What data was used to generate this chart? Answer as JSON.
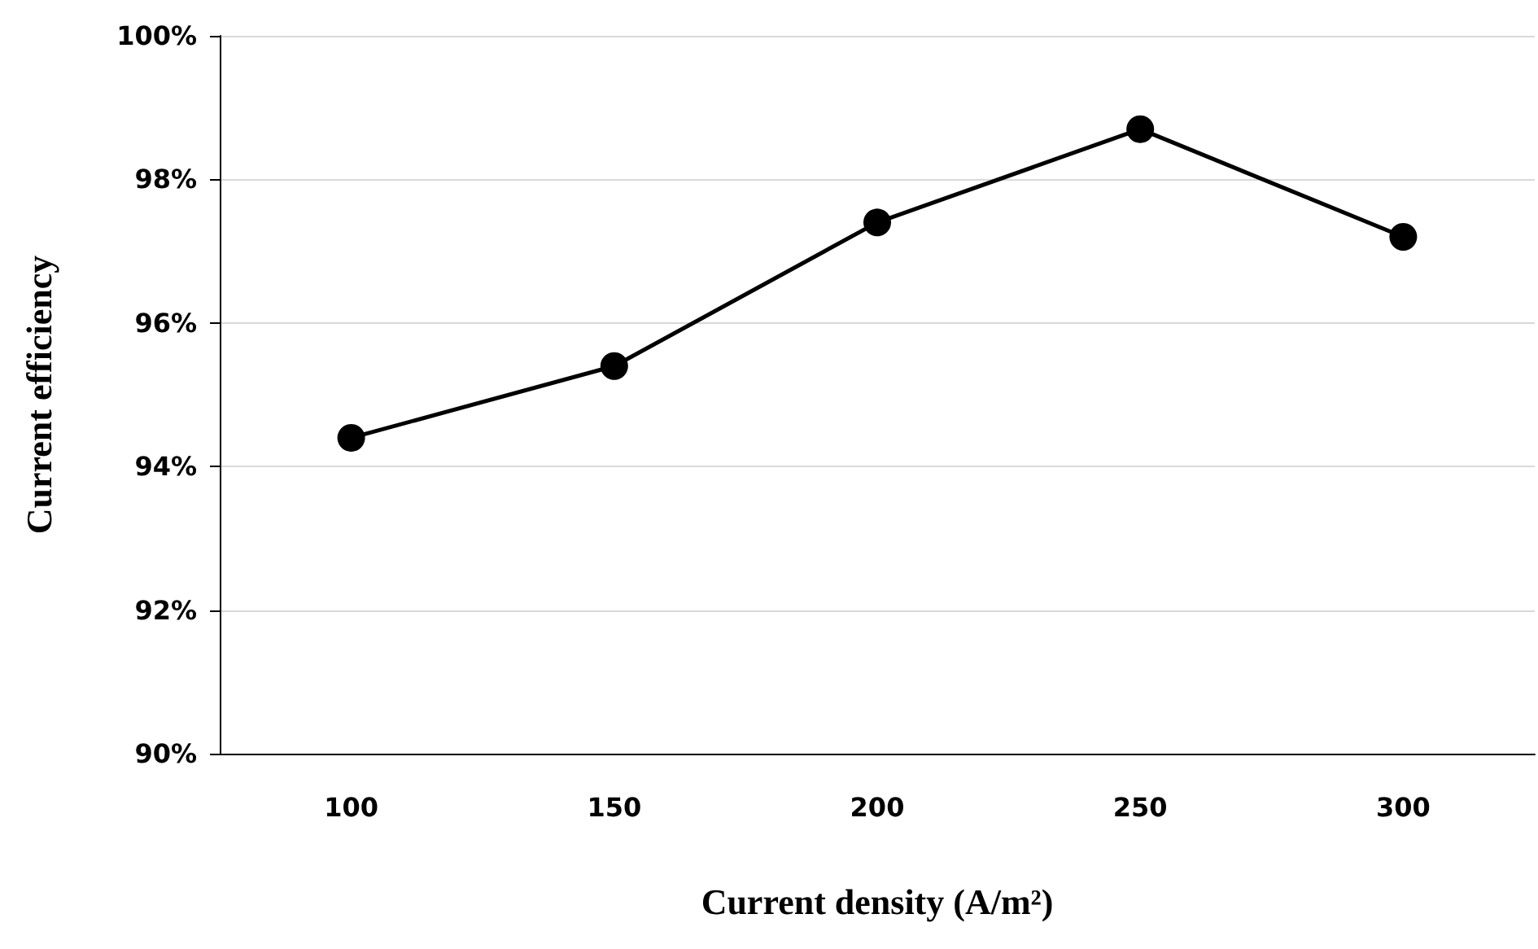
{
  "chart_data": {
    "type": "line",
    "xlabel": "Current density (A/m²)",
    "ylabel": "Current efficiency",
    "categories": [
      "100",
      "150",
      "200",
      "250",
      "300"
    ],
    "series": [
      {
        "color": "#000000",
        "values": [
          94.4,
          95.4,
          97.4,
          98.7,
          97.2
        ]
      }
    ],
    "ylim": [
      90,
      100
    ],
    "yticks": [
      {
        "value": 90,
        "label": "90%"
      },
      {
        "value": 92,
        "label": "92%"
      },
      {
        "value": 94,
        "label": "94%"
      },
      {
        "value": 96,
        "label": "96%"
      },
      {
        "value": 98,
        "label": "98%"
      },
      {
        "value": 100,
        "label": "100%"
      }
    ],
    "grid": "y",
    "marker": "circle",
    "line_style": "solid"
  }
}
